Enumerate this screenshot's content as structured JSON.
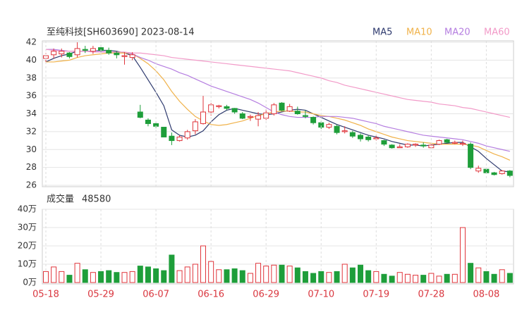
{
  "chart_data": [
    {
      "type": "candlestick",
      "title": "至纯科技[SH603690] 2023-08-14",
      "ylim": [
        26,
        42
      ],
      "yticks": [
        26,
        28,
        30,
        32,
        34,
        36,
        38,
        40,
        42
      ],
      "grid": true,
      "up_color": "#e0353b",
      "down_color": "#1e9e3a",
      "candles": [
        [
          40.2,
          40.8,
          39.8,
          40.5
        ],
        [
          40.6,
          41.3,
          40.2,
          41.0
        ],
        [
          40.7,
          41.3,
          40.3,
          41.0
        ],
        [
          40.8,
          40.9,
          40.2,
          40.4
        ],
        [
          40.6,
          42.0,
          40.3,
          41.3
        ],
        [
          41.2,
          41.6,
          40.8,
          41.1
        ],
        [
          41.0,
          41.6,
          40.7,
          41.3
        ],
        [
          41.4,
          41.7,
          40.9,
          41.1
        ],
        [
          41.1,
          41.4,
          40.6,
          40.8
        ],
        [
          40.8,
          41.0,
          40.2,
          40.6
        ],
        [
          40.4,
          40.9,
          39.5,
          40.5
        ],
        [
          40.3,
          40.9,
          40.0,
          40.6
        ],
        [
          34.2,
          35.0,
          33.5,
          33.6
        ],
        [
          33.3,
          33.5,
          32.6,
          32.9
        ],
        [
          32.9,
          33.1,
          32.4,
          32.6
        ],
        [
          32.5,
          32.5,
          31.4,
          31.4
        ],
        [
          31.5,
          31.9,
          30.5,
          31.0
        ],
        [
          31.0,
          31.6,
          30.9,
          31.4
        ],
        [
          31.3,
          32.2,
          31.1,
          32.0
        ],
        [
          32.1,
          33.4,
          31.7,
          33.1
        ],
        [
          32.9,
          36.0,
          32.8,
          34.2
        ],
        [
          34.2,
          35.2,
          33.8,
          35.0
        ],
        [
          34.8,
          35.0,
          34.6,
          34.9
        ],
        [
          34.8,
          35.0,
          34.4,
          34.6
        ],
        [
          34.6,
          34.6,
          34.0,
          34.2
        ],
        [
          34.0,
          34.2,
          33.4,
          33.5
        ],
        [
          33.6,
          33.9,
          33.2,
          33.7
        ],
        [
          33.4,
          34.2,
          32.6,
          33.8
        ],
        [
          33.5,
          34.5,
          33.3,
          34.1
        ],
        [
          34.0,
          35.2,
          33.8,
          35.0
        ],
        [
          35.2,
          35.3,
          34.3,
          34.4
        ],
        [
          34.3,
          35.1,
          34.2,
          34.8
        ],
        [
          34.3,
          34.8,
          33.9,
          34.0
        ],
        [
          33.8,
          34.4,
          33.5,
          33.7
        ],
        [
          33.6,
          33.7,
          32.8,
          33.0
        ],
        [
          33.0,
          33.2,
          32.3,
          32.5
        ],
        [
          32.5,
          33.0,
          32.3,
          32.8
        ],
        [
          32.6,
          32.8,
          31.7,
          31.9
        ],
        [
          32.0,
          32.6,
          31.8,
          32.1
        ],
        [
          31.9,
          32.1,
          31.3,
          31.5
        ],
        [
          31.6,
          31.8,
          30.9,
          31.2
        ],
        [
          31.4,
          31.6,
          30.9,
          31.1
        ],
        [
          31.2,
          31.6,
          31.0,
          31.3
        ],
        [
          31.0,
          31.1,
          30.4,
          30.6
        ],
        [
          30.5,
          30.6,
          30.1,
          30.2
        ],
        [
          30.2,
          30.6,
          30.2,
          30.3
        ],
        [
          30.3,
          30.7,
          30.2,
          30.6
        ],
        [
          30.5,
          30.7,
          30.3,
          30.6
        ],
        [
          30.5,
          30.8,
          30.2,
          30.4
        ],
        [
          30.2,
          30.7,
          30.1,
          30.5
        ],
        [
          30.6,
          31.1,
          30.5,
          31.0
        ],
        [
          31.1,
          31.2,
          30.7,
          30.8
        ],
        [
          30.7,
          31.0,
          30.6,
          30.8
        ],
        [
          30.6,
          31.0,
          30.4,
          30.7
        ],
        [
          30.6,
          30.8,
          27.8,
          28.0
        ],
        [
          27.6,
          28.2,
          27.4,
          27.9
        ],
        [
          27.8,
          27.9,
          27.3,
          27.4
        ],
        [
          27.4,
          27.5,
          27.1,
          27.2
        ],
        [
          27.3,
          27.7,
          27.2,
          27.6
        ],
        [
          27.6,
          27.7,
          26.9,
          27.1
        ]
      ],
      "series": [
        {
          "name": "MA5",
          "color": "#2e3a6e",
          "values": [
            39.8,
            40.2,
            40.5,
            40.7,
            41.0,
            41.0,
            41.0,
            41.1,
            41.1,
            41.0,
            40.8,
            40.5,
            39.2,
            37.8,
            36.4,
            34.9,
            32.2,
            31.6,
            31.4,
            31.6,
            32.1,
            33.1,
            33.9,
            34.4,
            34.6,
            34.4,
            34.2,
            34.0,
            33.9,
            34.0,
            34.2,
            34.4,
            34.5,
            34.4,
            34.0,
            33.6,
            33.2,
            32.8,
            32.5,
            32.2,
            31.9,
            31.6,
            31.4,
            31.2,
            30.9,
            30.7,
            30.5,
            30.5,
            30.4,
            30.5,
            30.6,
            30.7,
            30.8,
            30.8,
            30.3,
            29.8,
            29.0,
            28.3,
            27.6,
            27.5
          ]
        },
        {
          "name": "MA10",
          "color": "#f0b24a",
          "values": [
            39.8,
            39.8,
            39.9,
            40.0,
            40.3,
            40.5,
            40.6,
            40.7,
            40.8,
            40.8,
            40.8,
            40.7,
            40.2,
            39.6,
            38.8,
            37.8,
            36.5,
            35.4,
            34.5,
            33.7,
            33.2,
            32.8,
            32.7,
            32.8,
            33.0,
            33.2,
            33.5,
            33.8,
            34.0,
            34.2,
            34.3,
            34.3,
            34.2,
            34.2,
            34.0,
            33.8,
            33.7,
            33.5,
            33.3,
            33.0,
            32.7,
            32.3,
            32.0,
            31.7,
            31.4,
            31.2,
            31.0,
            30.9,
            30.8,
            30.7,
            30.6,
            30.6,
            30.6,
            30.6,
            30.5,
            30.3,
            29.9,
            29.5,
            29.2,
            28.8
          ]
        },
        {
          "name": "MA20",
          "color": "#b57ee0",
          "values": [
            41.2,
            41.2,
            41.1,
            41.0,
            41.0,
            41.0,
            41.0,
            41.0,
            40.9,
            40.9,
            40.9,
            40.7,
            40.3,
            40.0,
            39.6,
            39.3,
            39.0,
            38.6,
            38.3,
            37.9,
            37.5,
            37.1,
            36.8,
            36.5,
            36.2,
            35.9,
            35.6,
            35.2,
            34.7,
            34.2,
            33.9,
            33.7,
            33.6,
            33.6,
            33.6,
            33.7,
            33.7,
            33.7,
            33.6,
            33.5,
            33.3,
            33.1,
            32.9,
            32.6,
            32.4,
            32.2,
            32.0,
            31.8,
            31.6,
            31.5,
            31.4,
            31.3,
            31.2,
            31.1,
            30.9,
            30.7,
            30.4,
            30.2,
            30.0,
            29.8
          ]
        },
        {
          "name": "MA60",
          "color": "#f29ac8",
          "values": [
            41.2,
            41.1,
            41.0,
            41.0,
            41.0,
            41.0,
            40.9,
            40.9,
            40.9,
            40.9,
            40.9,
            40.8,
            40.8,
            40.7,
            40.6,
            40.5,
            40.3,
            40.2,
            40.1,
            40.0,
            39.9,
            39.8,
            39.7,
            39.6,
            39.5,
            39.4,
            39.3,
            39.2,
            39.1,
            39.0,
            38.9,
            38.8,
            38.6,
            38.4,
            38.2,
            38.0,
            37.7,
            37.5,
            37.2,
            37.0,
            36.8,
            36.6,
            36.4,
            36.2,
            36.0,
            35.8,
            35.6,
            35.5,
            35.4,
            35.3,
            35.1,
            35.0,
            34.9,
            34.7,
            34.6,
            34.4,
            34.2,
            34.0,
            33.8,
            33.6
          ]
        }
      ]
    },
    {
      "type": "volume",
      "title": "成交量",
      "latest": 48580,
      "ylim": [
        0,
        40
      ],
      "yticks": [
        {
          "value": 0,
          "label": "0万"
        },
        {
          "value": 10,
          "label": "10万"
        },
        {
          "value": 20,
          "label": "20万"
        },
        {
          "value": 30,
          "label": "30万"
        },
        {
          "value": 40,
          "label": "40万"
        }
      ],
      "grid": true,
      "categories": [
        "05-18",
        null,
        null,
        null,
        null,
        null,
        null,
        "05-29",
        null,
        null,
        null,
        null,
        null,
        null,
        "06-07",
        null,
        null,
        null,
        null,
        null,
        null,
        "06-16",
        null,
        null,
        null,
        null,
        null,
        null,
        "06-29",
        null,
        null,
        null,
        null,
        null,
        null,
        "07-10",
        null,
        null,
        null,
        null,
        null,
        null,
        "07-19",
        null,
        null,
        null,
        null,
        null,
        null,
        "07-28",
        null,
        null,
        null,
        null,
        null,
        null,
        "08-08",
        null,
        null,
        null
      ],
      "values": [
        6,
        8.5,
        6,
        4,
        10.5,
        7,
        5.5,
        6,
        6.5,
        5.5,
        5.5,
        6,
        9,
        8.5,
        7.5,
        6.5,
        15,
        6.5,
        8.5,
        10,
        20,
        11.5,
        7,
        7,
        7.5,
        6.5,
        5,
        10.5,
        9,
        9.5,
        9.5,
        9,
        8,
        6,
        5,
        6,
        5.5,
        6,
        10,
        8,
        9.5,
        6.5,
        6,
        4.5,
        3.5,
        5.5,
        4.5,
        4,
        4,
        5,
        3.5,
        4.5,
        4.5,
        30,
        10.5,
        8,
        6,
        4.5,
        7,
        5
      ]
    }
  ]
}
